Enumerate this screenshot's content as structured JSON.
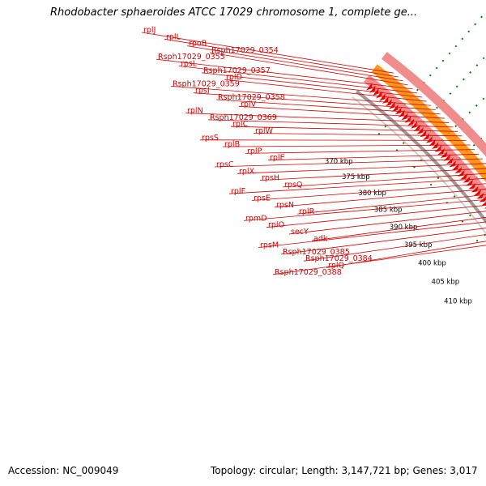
{
  "title": "Rhodobacter sphaeroides ATCC 17029 chromosome 1, complete ge...",
  "footer": {
    "accession": "Accession: NC_009049",
    "info": "Topology: circular; Length: 3,147,721 bp; Genes: 3,017"
  },
  "ticks": [
    "370 kbp",
    "375 kbp",
    "380 kbp",
    "385 kbp",
    "390 kbp",
    "395 kbp",
    "400 kbp",
    "405 kbp",
    "410 kbp"
  ],
  "gene_labels": [
    "rplJ",
    "rplL",
    "rpoB",
    "Rsph17029_0354",
    "Rsph17029_0355",
    "rpsL",
    "Rsph17029_0357",
    "rplD",
    "Rsph17029_0359",
    "rpsJ",
    "Rsph17029_0358",
    "rplV",
    "rplN",
    "Rsph17029_0369",
    "rplC",
    "rplW",
    "rpsS",
    "rplB",
    "rplP",
    "rplE",
    "rpsC",
    "rplX",
    "rpsH",
    "rpsQ",
    "rplF",
    "rpsE",
    "rpsN",
    "rplR",
    "rpmD",
    "rplO",
    "secY",
    "adk",
    "rpsM",
    "Rsph17029_0385",
    "Rsph17029_0384",
    "rplQ",
    "Rsph17029_0388"
  ],
  "colors": {
    "gene_red": "#ee0000",
    "gene_pink": "#f08080",
    "gene_orange": "#ff8c00",
    "backbone": "#9a9a9a",
    "tick_green": "#008000",
    "label_red": "#d40000"
  }
}
